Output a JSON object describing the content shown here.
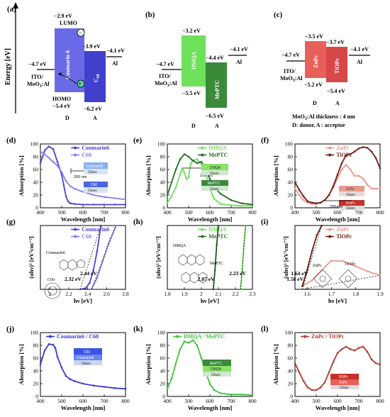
{
  "panel_letters": [
    "(a)",
    "(b)",
    "(c)",
    "(d)",
    "(e)",
    "(f)",
    "(g)",
    "(h)",
    "(i)",
    "(j)",
    "(k)",
    "(l)"
  ],
  "energy_diagrams": {
    "y_axis_label": "Energy [eV]",
    "a": {
      "ito_level": "−4.7 eV",
      "ito_label_1": "ITO/",
      "ito_label_2": "MoO",
      "ito_label_2b": "3",
      "ito_label_2c": ":Al",
      "lumo_value": "−2.9 eV",
      "lumo_label": "LUMO",
      "homo_value": "−5.4 eV",
      "homo_label": "HOMO",
      "donor_name": "Coumarin 6",
      "acc_top": "−3.9 eV",
      "acc_bottom": "−6.2 eV",
      "acc_name": "C",
      "acc_sub": "60",
      "al_level": "−4.1 eV",
      "al_label": "Al",
      "d_label": "D",
      "a_label": "A",
      "minus": "−",
      "plus": "+"
    },
    "b": {
      "ito_level": "−4.7 eV",
      "ito_label_1": "ITO/",
      "ito_label_2": "MoO",
      "ito_label_2b": "3",
      "ito_label_2c": ":Al",
      "donor_top": "−3.2 eV",
      "donor_bottom": "−5.5 eV",
      "donor_name": "DMQA",
      "acc_top": "−4.4 eV",
      "acc_bottom": "−6.5 eV",
      "acc_name": "MePTC",
      "al_level": "−4.1 eV",
      "al_label": "Al",
      "d_label": "D",
      "a_label": "A"
    },
    "c": {
      "ito_level": "−4.7 eV",
      "ito_label_1": "ITO/",
      "ito_label_2": "MoO",
      "ito_label_2b": "3",
      "ito_label_2c": ":Al",
      "donor_top": "−3.5 eV",
      "donor_bottom": "−5.2 eV",
      "donor_name": "ZnPc",
      "acc_top": "−3.7 eV",
      "acc_bottom": "−5.4 eV",
      "acc_name": "TiOPc",
      "al_level": "−4.1 eV",
      "al_label": "Al",
      "d_label": "D",
      "a_label": "A",
      "note1a": "MoO",
      "note1b": "3",
      "note1c": ":Al thickness : 4 nm",
      "note2": "D: donor, A : acceptor"
    }
  },
  "axis_texts": {
    "absorption": "Absorption [%]",
    "wavelength": "Wavelength [nm]",
    "hv": "hν [eV]",
    "tauc": "(αhν)² [eV²cm⁻²]",
    "nm200": "200 nm",
    "glass": "Glass",
    "coumarin6_layer": "Coumarin6",
    "c60_layer": "C60",
    "dmqa_layer": "DMQA",
    "meptc_layer": "MePTC",
    "znpc_layer": "ZnPc",
    "tiopc_layer": "TiOPc"
  },
  "chart_data": [
    {
      "panel": "(d)",
      "type": "line",
      "xlabel": "Wavelength [nm]",
      "ylabel": "Absorption [%]",
      "xlim": [
        400,
        800
      ],
      "ylim": [
        0,
        100
      ],
      "xticks": [
        400,
        500,
        600,
        700,
        800
      ],
      "yticks": [
        0,
        20,
        40,
        60,
        80,
        100
      ],
      "series": [
        {
          "name": "Coumarin6",
          "color": "#4b43d8",
          "x": [
            400,
            420,
            440,
            460,
            480,
            500,
            510,
            520,
            530,
            540,
            560,
            600,
            650,
            700,
            750,
            800
          ],
          "y": [
            70,
            90,
            96,
            92,
            72,
            52,
            35,
            18,
            10,
            7,
            6,
            5,
            5,
            5,
            5,
            5
          ]
        },
        {
          "name": "C60",
          "color": "#8a7fe8",
          "x": [
            400,
            420,
            440,
            460,
            480,
            500,
            520,
            540,
            560,
            600,
            650,
            700,
            750,
            800
          ],
          "y": [
            88,
            84,
            78,
            72,
            66,
            56,
            42,
            34,
            30,
            25,
            20,
            17,
            15,
            13
          ]
        }
      ]
    },
    {
      "panel": "(e)",
      "type": "line",
      "xlabel": "Wavelength [nm]",
      "ylabel": "Absorption [%]",
      "xlim": [
        400,
        800
      ],
      "ylim": [
        0,
        100
      ],
      "xticks": [
        400,
        500,
        600,
        700,
        800
      ],
      "yticks": [
        0,
        20,
        40,
        60,
        80,
        100
      ],
      "series": [
        {
          "name": "DMQA",
          "color": "#6ee05a",
          "x": [
            400,
            420,
            440,
            460,
            470,
            480,
            490,
            500,
            510,
            520,
            540,
            560,
            580,
            600,
            620,
            650,
            700,
            750,
            800
          ],
          "y": [
            8,
            18,
            32,
            52,
            62,
            55,
            45,
            48,
            70,
            74,
            76,
            68,
            55,
            30,
            14,
            6,
            4,
            3,
            3
          ]
        },
        {
          "name": "MePTC",
          "color": "#2a6a26",
          "x": [
            400,
            420,
            440,
            460,
            480,
            500,
            520,
            540,
            560,
            580,
            600,
            620,
            650,
            700,
            750,
            800
          ],
          "y": [
            20,
            40,
            60,
            76,
            84,
            80,
            74,
            70,
            72,
            62,
            45,
            32,
            22,
            12,
            7,
            5
          ]
        }
      ]
    },
    {
      "panel": "(f)",
      "type": "line",
      "xlabel": "Wavelength [nm]",
      "ylabel": "Absorption [%]",
      "xlim": [
        400,
        800
      ],
      "ylim": [
        0,
        100
      ],
      "xticks": [
        400,
        500,
        600,
        700,
        800
      ],
      "yticks": [
        0,
        20,
        40,
        60,
        80,
        100
      ],
      "series": [
        {
          "name": "ZnPc",
          "color": "#e89a8c",
          "x": [
            400,
            420,
            440,
            460,
            480,
            500,
            520,
            540,
            560,
            580,
            600,
            620,
            640,
            660,
            680,
            700,
            720,
            740,
            760,
            780,
            800
          ],
          "y": [
            30,
            20,
            12,
            8,
            6,
            6,
            8,
            12,
            20,
            32,
            46,
            60,
            67,
            60,
            50,
            50,
            46,
            36,
            30,
            30,
            30
          ]
        },
        {
          "name": "TiOPc",
          "color": "#6e1e12",
          "x": [
            400,
            420,
            440,
            460,
            480,
            500,
            520,
            540,
            560,
            580,
            600,
            620,
            640,
            660,
            680,
            700,
            720,
            740,
            760,
            780,
            800
          ],
          "y": [
            40,
            28,
            18,
            10,
            8,
            7,
            8,
            12,
            20,
            34,
            52,
            70,
            82,
            84,
            88,
            93,
            95,
            94,
            88,
            78,
            62
          ]
        }
      ]
    },
    {
      "panel": "(g)",
      "type": "line",
      "xlabel": "hν [eV]",
      "ylabel": "(αhν)² [eV²cm⁻²]",
      "xlim": [
        1.9,
        2.8
      ],
      "xticks": [
        2.0,
        2.2,
        2.4,
        2.6,
        2.8
      ],
      "annotations": [
        "2.32 eV",
        "2.44 eV"
      ],
      "labels": [
        "Coumarin6",
        "C60"
      ],
      "series": [
        {
          "name": "Coumarin6",
          "color": "#4b43d8",
          "x": [
            2.32,
            2.38,
            2.42,
            2.46,
            2.5,
            2.54
          ],
          "y": [
            0,
            0.02,
            0.1,
            0.3,
            0.6,
            1.0
          ]
        },
        {
          "name": "C60",
          "color": "#8a7fe8",
          "x": [
            2.44,
            2.5,
            2.56,
            2.62,
            2.7
          ],
          "y": [
            0,
            0.18,
            0.45,
            0.72,
            1.0
          ]
        }
      ]
    },
    {
      "panel": "(h)",
      "type": "line",
      "xlabel": "hν [eV]",
      "ylabel": "(αhν)² [eV²cm⁻²]",
      "xlim": [
        1.8,
        2.3
      ],
      "xticks": [
        1.8,
        1.9,
        2.0,
        2.1,
        2.2,
        2.3
      ],
      "annotations": [
        "2.07 eV",
        "2.23 eV"
      ],
      "labels": [
        "DMQA",
        "MePTC"
      ],
      "series": [
        {
          "name": "DMQA",
          "color": "#6ee05a",
          "x": [
            2.23,
            2.24,
            2.25,
            2.26
          ],
          "y": [
            0,
            0.3,
            0.7,
            1.0
          ]
        },
        {
          "name": "MePTC",
          "color": "#2a6a26",
          "x": [
            2.07,
            2.08,
            2.09,
            2.1
          ],
          "y": [
            0,
            0.3,
            0.7,
            1.0
          ]
        }
      ]
    },
    {
      "panel": "(i)",
      "type": "line",
      "xlabel": "hν [eV]",
      "ylabel": "(αhν)² [eV²cm⁻²]",
      "xlim": [
        1.55,
        1.9
      ],
      "xticks": [
        1.6,
        1.7,
        1.8,
        1.9
      ],
      "annotations": [
        "1.58 eV",
        "1.64 eV"
      ],
      "labels": [
        "ZnPc",
        "TiOPc"
      ],
      "series": [
        {
          "name": "ZnPc",
          "color": "#e89a8c",
          "x": [
            1.58,
            1.62,
            1.66,
            1.7,
            1.75,
            1.8,
            1.85,
            1.9
          ],
          "y": [
            0.05,
            0.14,
            0.3,
            0.45,
            0.44,
            0.36,
            0.28,
            0.22
          ]
        },
        {
          "name": "TiOPc",
          "color": "#6e1e12",
          "x": [
            1.58,
            1.6,
            1.62,
            1.64,
            1.66
          ],
          "y": [
            0.05,
            0.3,
            0.6,
            0.85,
            1.0
          ]
        }
      ]
    },
    {
      "panel": "(j)",
      "type": "line",
      "xlabel": "Wavelength [nm]",
      "ylabel": "Absorption [%]",
      "xlim": [
        400,
        800
      ],
      "ylim": [
        0,
        100
      ],
      "xticks": [
        400,
        500,
        600,
        700,
        800
      ],
      "yticks": [
        0,
        20,
        40,
        60,
        80,
        100
      ],
      "series": [
        {
          "name": "Coumarin6 / C60",
          "color": "#3a3ad8",
          "x": [
            400,
            420,
            440,
            460,
            470,
            480,
            500,
            520,
            540,
            560,
            600,
            650,
            700,
            750,
            800
          ],
          "y": [
            50,
            72,
            82,
            81,
            76,
            62,
            45,
            32,
            27,
            24,
            20,
            17,
            15,
            13,
            12
          ]
        }
      ]
    },
    {
      "panel": "(k)",
      "type": "line",
      "xlabel": "Wavelength [nm]",
      "ylabel": "Absorption [%]",
      "xlim": [
        400,
        800
      ],
      "ylim": [
        0,
        100
      ],
      "xticks": [
        400,
        500,
        600,
        700,
        800
      ],
      "yticks": [
        0,
        20,
        40,
        60,
        80,
        100
      ],
      "series": [
        {
          "name": "DMQA / MePTC",
          "color": "#3cc43c",
          "x": [
            400,
            420,
            440,
            460,
            480,
            500,
            520,
            540,
            560,
            580,
            600,
            620,
            650,
            700,
            750,
            800
          ],
          "y": [
            12,
            28,
            52,
            74,
            86,
            84,
            88,
            80,
            60,
            38,
            20,
            10,
            5,
            3,
            3,
            2
          ]
        }
      ]
    },
    {
      "panel": "(l)",
      "type": "line",
      "xlabel": "Wavelength [nm]",
      "ylabel": "Absorption [%]",
      "xlim": [
        400,
        800
      ],
      "ylim": [
        0,
        100
      ],
      "xticks": [
        400,
        500,
        600,
        700,
        800
      ],
      "yticks": [
        0,
        20,
        40,
        60,
        80,
        100
      ],
      "series": [
        {
          "name": "ZnPc / TiOPc",
          "color": "#b23a2c",
          "x": [
            400,
            420,
            440,
            460,
            480,
            500,
            520,
            540,
            560,
            580,
            600,
            620,
            640,
            660,
            680,
            700,
            720,
            740,
            760,
            780,
            800
          ],
          "y": [
            52,
            38,
            24,
            14,
            10,
            10,
            14,
            22,
            38,
            54,
            68,
            74,
            78,
            74,
            72,
            76,
            78,
            70,
            58,
            52,
            50
          ]
        }
      ]
    }
  ]
}
